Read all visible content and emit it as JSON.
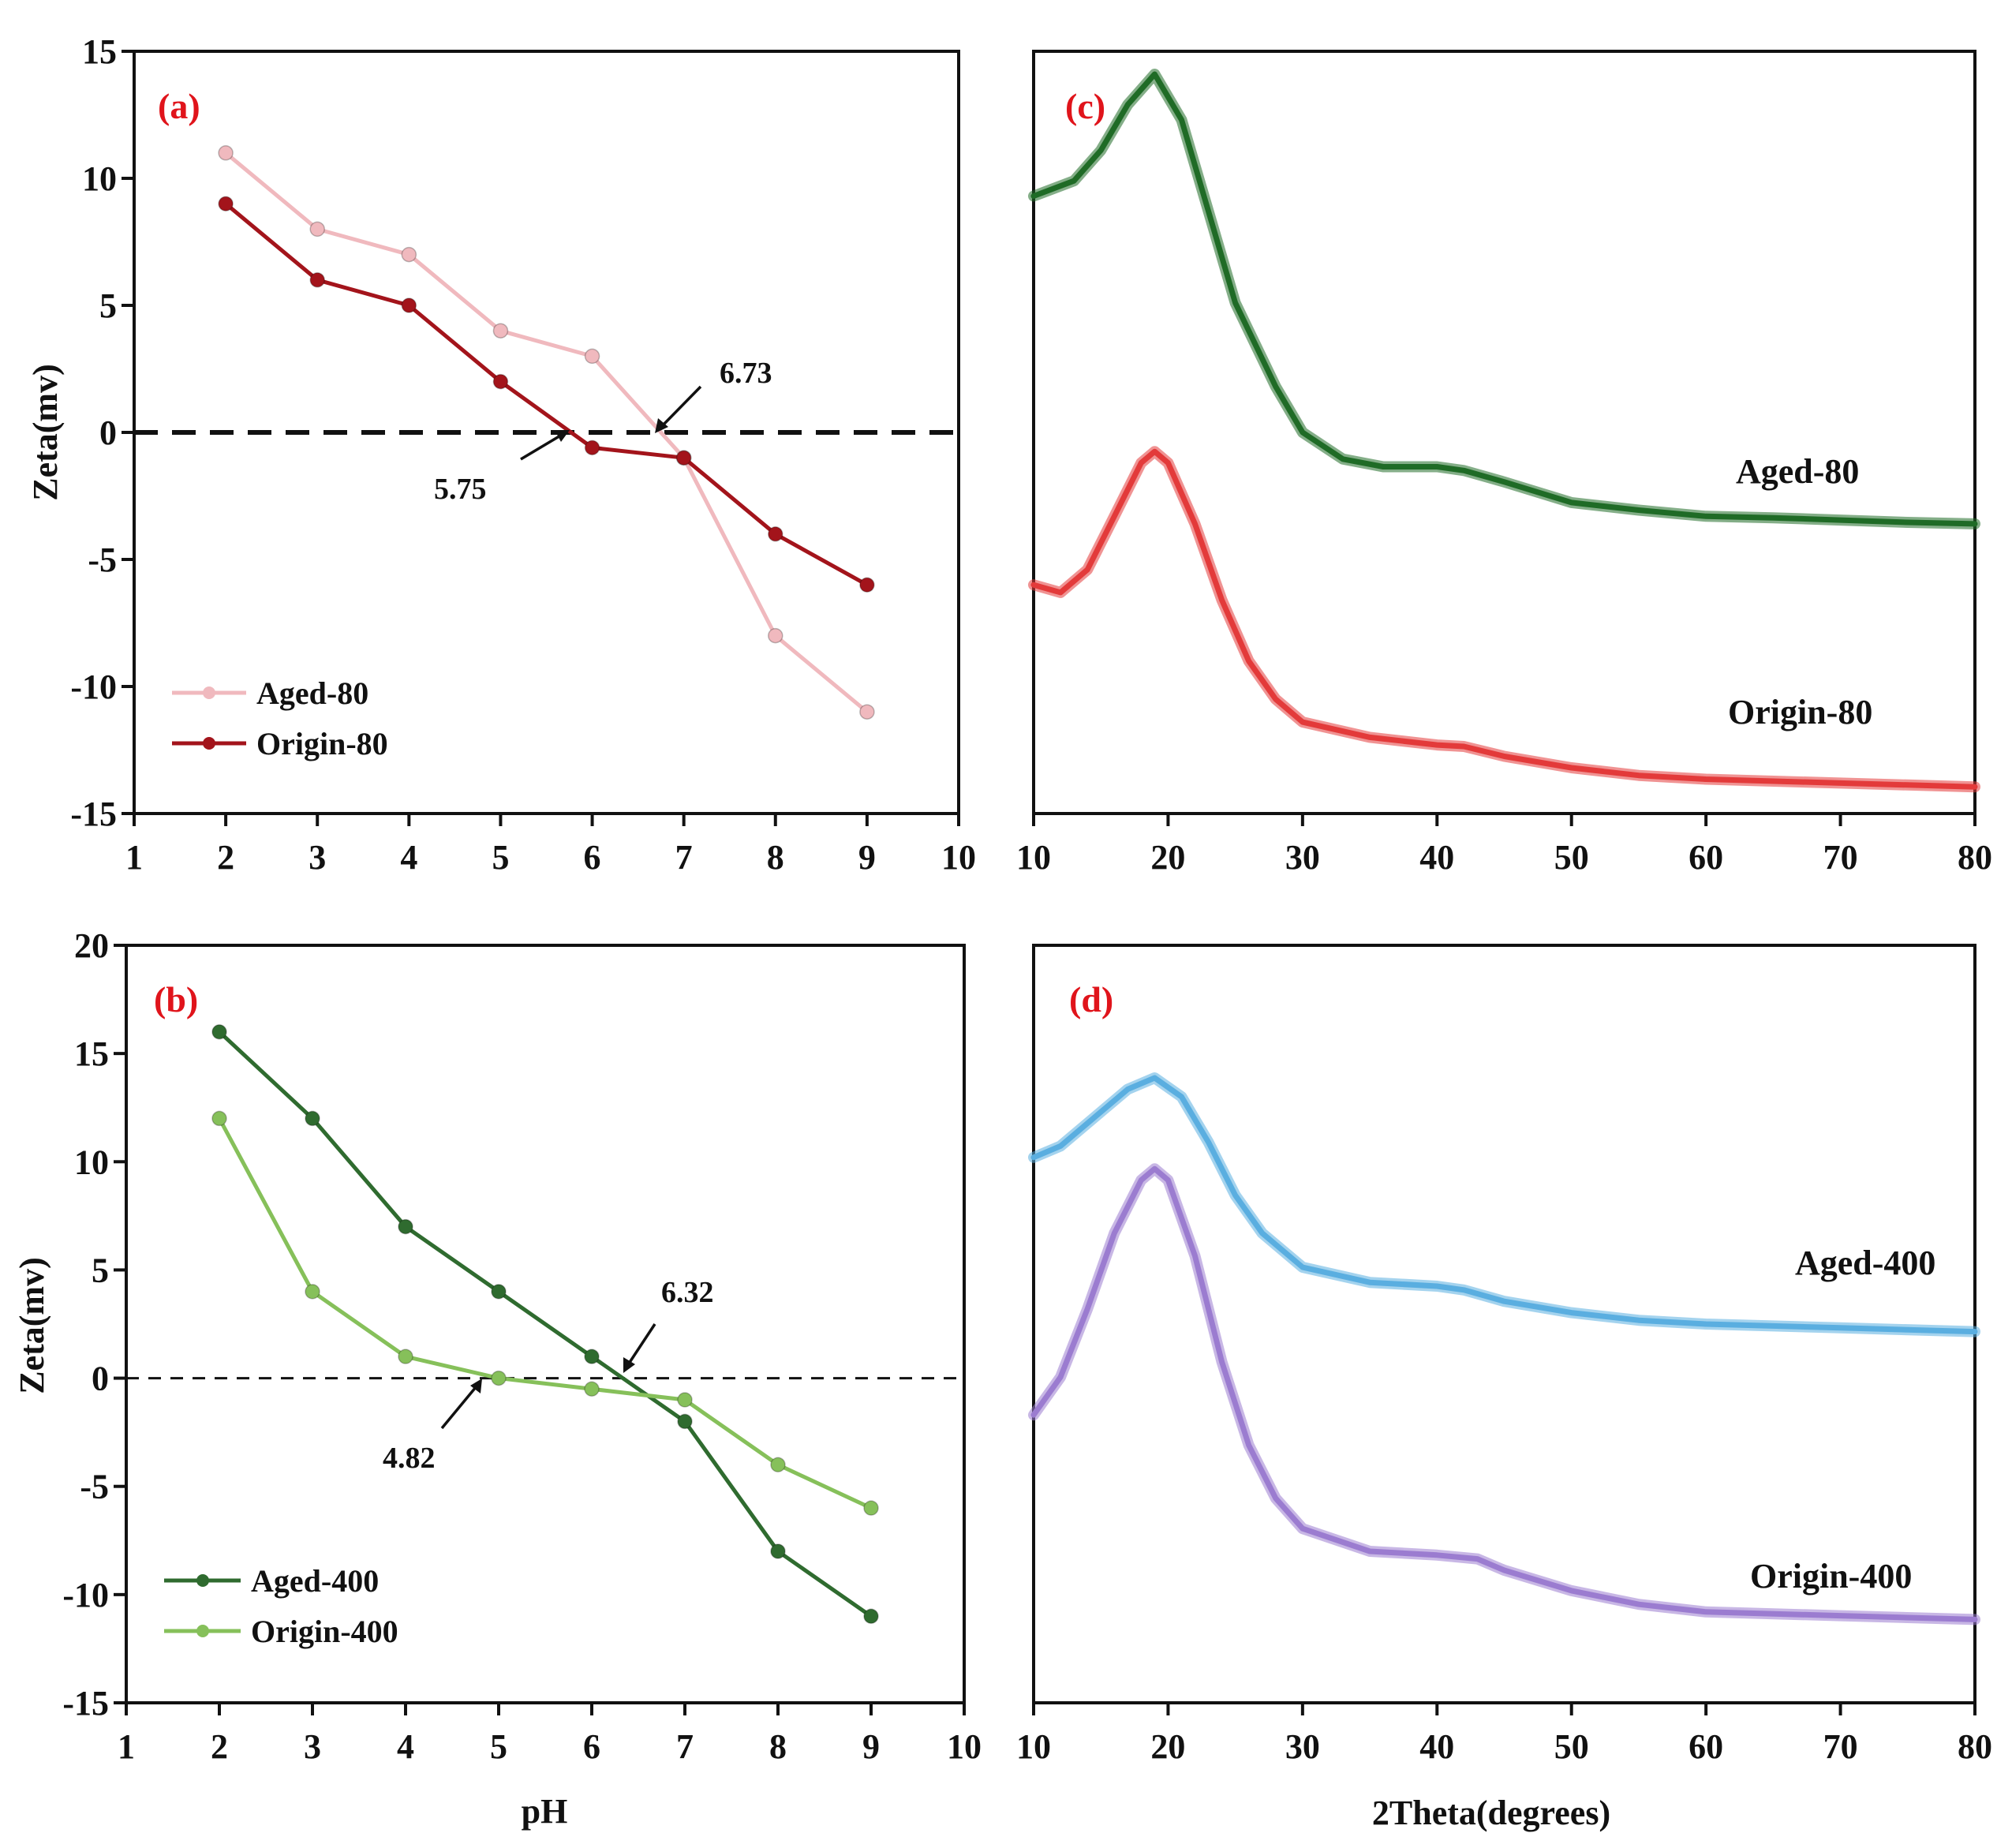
{
  "chart_data": [
    {
      "id": "a",
      "type": "line",
      "panel_label": "(a)",
      "xlabel": "",
      "ylabel": "Zeta(mv)",
      "xlim": [
        1,
        10
      ],
      "ylim": [
        -15,
        15
      ],
      "xticks": [
        1,
        2,
        3,
        4,
        5,
        6,
        7,
        8,
        9,
        10
      ],
      "yticks": [
        15,
        10,
        5,
        0,
        -5,
        -10,
        -15
      ],
      "zero_line": "dashed",
      "legend_position": "bottom-left",
      "series": [
        {
          "name": "Aged-80",
          "color": "#f0b9be",
          "x": [
            2,
            3,
            4,
            5,
            6,
            7,
            8,
            9
          ],
          "y": [
            11,
            8,
            7,
            4,
            3,
            -1,
            -8,
            -11
          ]
        },
        {
          "name": "Origin-80",
          "color": "#a3141b",
          "x": [
            2,
            3,
            4,
            5,
            6,
            7,
            8,
            9
          ],
          "y": [
            9,
            6,
            5,
            2,
            -0.6,
            -1,
            -4,
            -6
          ]
        }
      ],
      "annotations": [
        {
          "text": "6.73",
          "x": 6.73,
          "y": 0
        },
        {
          "text": "5.75",
          "x": 5.75,
          "y": 0
        }
      ]
    },
    {
      "id": "b",
      "type": "line",
      "panel_label": "(b)",
      "xlabel": "pH",
      "ylabel": "Zeta(mv)",
      "xlim": [
        1,
        10
      ],
      "ylim": [
        -15,
        20
      ],
      "xticks": [
        1,
        2,
        3,
        4,
        5,
        6,
        7,
        8,
        9,
        10
      ],
      "yticks": [
        20,
        15,
        10,
        5,
        0,
        -5,
        -10,
        -15
      ],
      "zero_line": "dashed",
      "legend_position": "bottom-left",
      "series": [
        {
          "name": "Aged-400",
          "color": "#2f6b2f",
          "x": [
            2,
            3,
            4,
            5,
            6,
            7,
            8,
            9
          ],
          "y": [
            16,
            12,
            7,
            4,
            1,
            -2,
            -8,
            -11
          ]
        },
        {
          "name": "Origin-400",
          "color": "#86c05a",
          "x": [
            2,
            3,
            4,
            5,
            6,
            7,
            8,
            9
          ],
          "y": [
            12,
            4,
            1,
            0,
            -0.5,
            -1,
            -4,
            -6
          ]
        }
      ],
      "annotations": [
        {
          "text": "6.32",
          "x": 6.32,
          "y": 0
        },
        {
          "text": "4.82",
          "x": 4.82,
          "y": 0
        }
      ]
    },
    {
      "id": "c",
      "type": "line",
      "panel_label": "(c)",
      "xlabel": "",
      "ylabel": "",
      "xlim": [
        10,
        80
      ],
      "yticks": [],
      "xticks": [
        10,
        20,
        30,
        40,
        50,
        60,
        70,
        80
      ],
      "y_axis_values": "not shown",
      "series": [
        {
          "name": "Aged-80",
          "color": "#1f6b26",
          "x": [
            10,
            13,
            15,
            17,
            19,
            21,
            23,
            25,
            28,
            30,
            33,
            36,
            40,
            42,
            45,
            50,
            55,
            60,
            65,
            70,
            75,
            80
          ],
          "y": [
            0.81,
            0.83,
            0.87,
            0.93,
            0.97,
            0.91,
            0.79,
            0.67,
            0.56,
            0.5,
            0.465,
            0.455,
            0.455,
            0.45,
            0.435,
            0.408,
            0.398,
            0.39,
            0.388,
            0.385,
            0.382,
            0.38
          ]
        },
        {
          "name": "Origin-80",
          "color": "#e33a3a",
          "x": [
            10,
            12,
            14,
            16,
            18,
            19,
            20,
            22,
            24,
            26,
            28,
            30,
            35,
            40,
            42,
            45,
            50,
            55,
            60,
            70,
            80
          ],
          "y": [
            0.3,
            0.29,
            0.32,
            0.39,
            0.46,
            0.475,
            0.46,
            0.38,
            0.28,
            0.2,
            0.15,
            0.12,
            0.1,
            0.09,
            0.088,
            0.075,
            0.06,
            0.05,
            0.045,
            0.04,
            0.035
          ]
        }
      ],
      "curve_labels": [
        "Aged-80",
        "Origin-80"
      ]
    },
    {
      "id": "d",
      "type": "line",
      "panel_label": "(d)",
      "xlabel": "2Theta(degrees)",
      "ylabel": "",
      "xlim": [
        10,
        80
      ],
      "yticks": [],
      "xticks": [
        10,
        20,
        30,
        40,
        50,
        60,
        70,
        80
      ],
      "y_axis_values": "not shown",
      "series": [
        {
          "name": "Aged-400",
          "color": "#5aaee0",
          "x": [
            10,
            12,
            15,
            17,
            19,
            21,
            23,
            25,
            27,
            30,
            35,
            40,
            42,
            45,
            50,
            55,
            60,
            70,
            80
          ],
          "y": [
            0.72,
            0.735,
            0.78,
            0.81,
            0.825,
            0.8,
            0.74,
            0.67,
            0.62,
            0.575,
            0.555,
            0.55,
            0.545,
            0.53,
            0.515,
            0.505,
            0.5,
            0.495,
            0.49
          ]
        },
        {
          "name": "Origin-400",
          "color": "#9b7cd0",
          "x": [
            10,
            12,
            14,
            16,
            18,
            19,
            20,
            22,
            24,
            26,
            28,
            30,
            35,
            40,
            43,
            45,
            50,
            55,
            60,
            70,
            80
          ],
          "y": [
            0.38,
            0.43,
            0.52,
            0.62,
            0.69,
            0.705,
            0.69,
            0.59,
            0.45,
            0.34,
            0.27,
            0.23,
            0.2,
            0.195,
            0.19,
            0.175,
            0.148,
            0.13,
            0.12,
            0.115,
            0.11
          ]
        }
      ],
      "curve_labels": [
        "Aged-400",
        "Origin-400"
      ]
    }
  ]
}
